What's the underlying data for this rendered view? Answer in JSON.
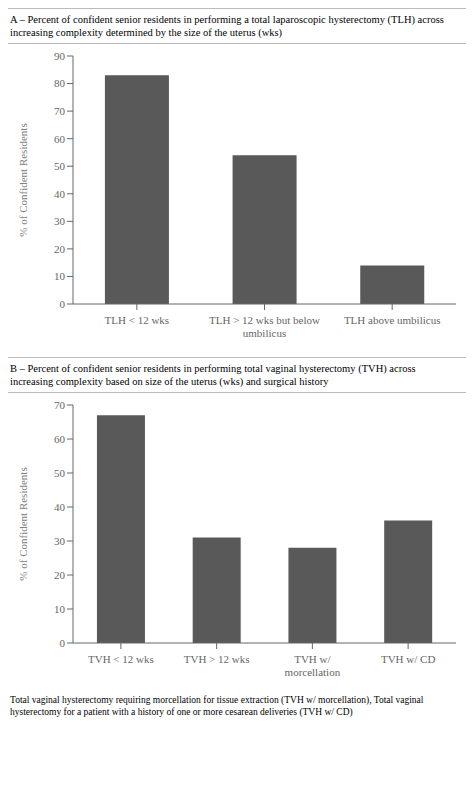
{
  "chart_data": [
    {
      "type": "bar",
      "title": "A – Percent of confident senior residents in performing a total laparoscopic hysterectomy (TLH) across\nincreasing complexity determined by the size of the uterus (wks)",
      "categories": [
        "TLH < 12 wks",
        "TLH > 12 wks but below\numbilicus",
        "TLH above umbilicus"
      ],
      "values": [
        83,
        54,
        14
      ],
      "ylabel": "% of Confident Residents",
      "color": "#595959",
      "ylim": [
        0,
        90
      ],
      "yticks": [
        0,
        10,
        20,
        30,
        40,
        50,
        60,
        70,
        80,
        90
      ],
      "grid": false
    },
    {
      "type": "bar",
      "title": "B – Percent of confident senior residents in performing total vaginal hysterectomy (TVH) across\nincreasing complexity based on size of the uterus (wks) and surgical history",
      "categories": [
        "TVH < 12 wks",
        "TVH > 12 wks",
        "TVH w/\nmorcellation",
        "TVH w/ CD"
      ],
      "values": [
        67,
        31,
        28,
        36
      ],
      "ylabel": "% of Confident Residents",
      "color": "#595959",
      "ylim": [
        0,
        70
      ],
      "yticks": [
        0,
        10,
        20,
        30,
        40,
        50,
        60,
        70
      ],
      "grid": false
    }
  ],
  "footnote": "Total vaginal hysterectomy requiring morcellation for tissue extraction (TVH w/ morcellation), Total vaginal\nhysterectomy for a patient with a history of one or more cesarean deliveries (TVH w/ CD)"
}
